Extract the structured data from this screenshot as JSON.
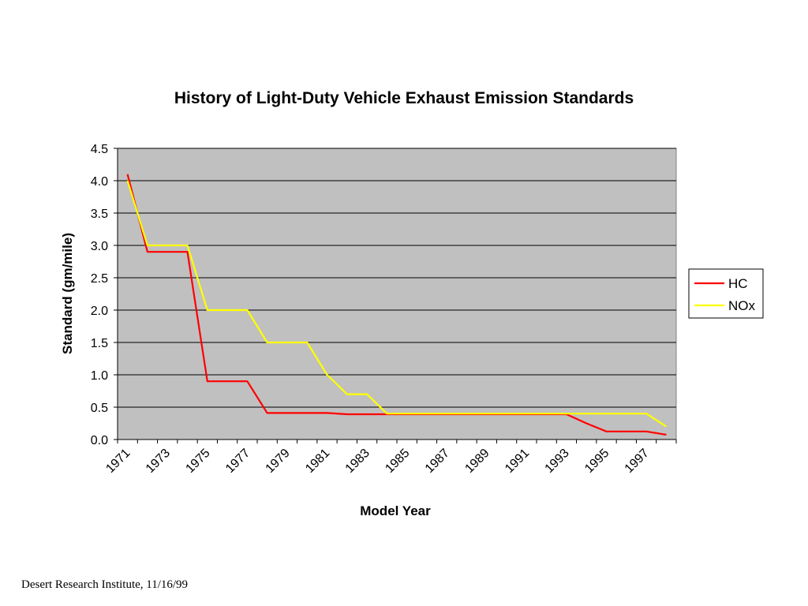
{
  "footer": "Desert Research Institute, 11/16/99",
  "chart_data": {
    "type": "line",
    "title": "History of Light-Duty Vehicle Exhaust Emission Standards",
    "xlabel": "Model Year",
    "ylabel": "Standard (gm/mile)",
    "ylim": [
      0,
      4.5
    ],
    "y_ticks": [
      "0.0",
      "0.5",
      "1.0",
      "1.5",
      "2.0",
      "2.5",
      "3.0",
      "3.5",
      "4.0",
      "4.5"
    ],
    "x_tick_labels": [
      "1971",
      "1973",
      "1975",
      "1977",
      "1979",
      "1981",
      "1983",
      "1985",
      "1987",
      "1989",
      "1991",
      "1993",
      "1995",
      "1997"
    ],
    "x": [
      1971,
      1972,
      1973,
      1974,
      1975,
      1976,
      1977,
      1978,
      1979,
      1980,
      1981,
      1982,
      1983,
      1984,
      1985,
      1986,
      1987,
      1988,
      1989,
      1990,
      1991,
      1992,
      1993,
      1994,
      1995,
      1996,
      1997,
      1998
    ],
    "series": [
      {
        "name": "HC",
        "color": "#ff0000",
        "values": [
          4.1,
          2.9,
          2.9,
          2.9,
          0.9,
          0.9,
          0.9,
          0.41,
          0.41,
          0.41,
          0.41,
          0.39,
          0.39,
          0.39,
          0.39,
          0.39,
          0.39,
          0.39,
          0.39,
          0.39,
          0.39,
          0.39,
          0.39,
          0.25,
          0.125,
          0.125,
          0.125,
          0.075
        ]
      },
      {
        "name": "NOx",
        "color": "#ffff00",
        "values": [
          4.0,
          3.0,
          3.0,
          3.0,
          2.0,
          2.0,
          2.0,
          1.5,
          1.5,
          1.5,
          1.0,
          0.7,
          0.7,
          0.4,
          0.4,
          0.4,
          0.4,
          0.4,
          0.4,
          0.4,
          0.4,
          0.4,
          0.4,
          0.4,
          0.4,
          0.4,
          0.4,
          0.2
        ]
      }
    ],
    "plot_background": "#c0c0c0",
    "grid": true,
    "legend_position": "right"
  }
}
